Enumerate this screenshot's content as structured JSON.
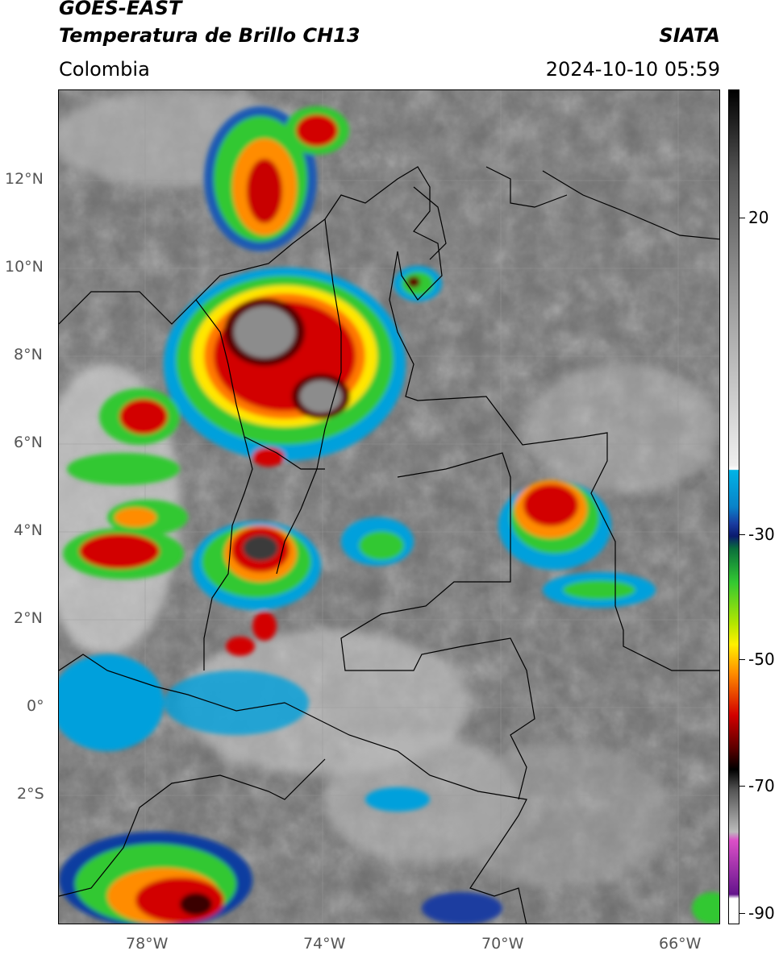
{
  "header": {
    "satellite": "GOES-EAST",
    "product": "Temperatura de Brillo CH13",
    "region": "Colombia",
    "agency": "SIATA",
    "datetime": "2024-10-10 05:59"
  },
  "map": {
    "lat_labels": [
      "12°N",
      "10°N",
      "8°N",
      "6°N",
      "4°N",
      "2°N",
      "0°",
      "2°S"
    ],
    "lon_labels": [
      "78°W",
      "74°W",
      "70°W",
      "66°W"
    ]
  },
  "colorbar": {
    "ticks": [
      "20",
      "-30",
      "-50",
      "-70",
      "-90"
    ],
    "colors": {
      "cyan": "#00b4e6",
      "blue": "#1a3ca0",
      "navy": "#0a1a6e",
      "green": "#32c832",
      "yellow": "#fff000",
      "orange": "#ff8c00",
      "red": "#d20000",
      "darkred": "#5a0000",
      "black": "#000000",
      "magenta": "#dc50c8",
      "purple": "#64148c"
    }
  }
}
